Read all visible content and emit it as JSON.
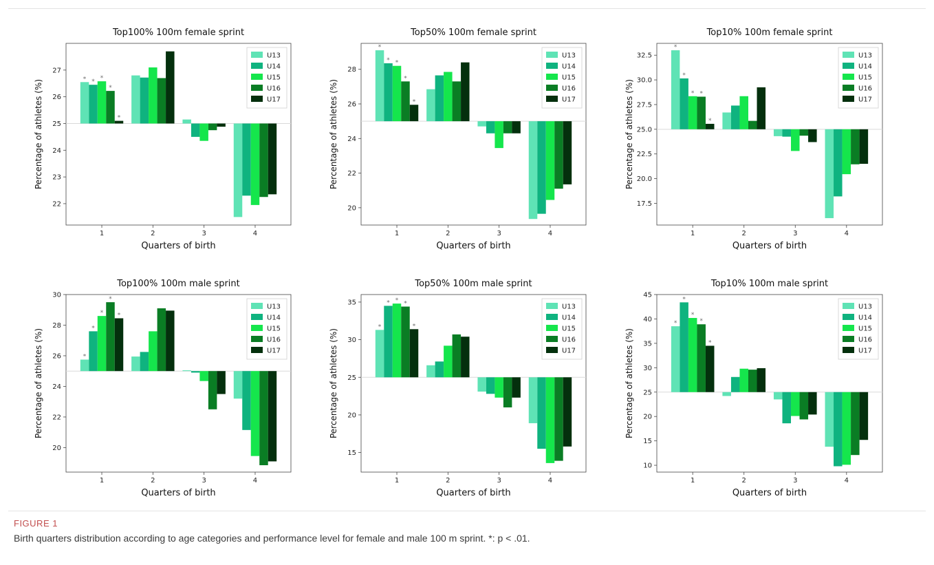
{
  "figure": {
    "label": "FIGURE 1",
    "caption": "Birth quarters distribution according to age categories and performance level for female and male 100 m sprint. *: p < .01."
  },
  "colors": {
    "U13": "#5fe3b5",
    "U14": "#0fb37f",
    "U15": "#15e64c",
    "U16": "#0a7d24",
    "U17": "#04300d",
    "baseline": "#d9d9d9",
    "star": "#6e6e6e"
  },
  "chart_data": [
    {
      "type": "bar",
      "title": "Top100% 100m female sprint",
      "xlabel": "Quarters of birth",
      "ylabel": "Percentage of athletes (%)",
      "baseline": 25,
      "ylim": [
        21.2,
        28.0
      ],
      "yticks": [
        22,
        23,
        24,
        25,
        26,
        27
      ],
      "ytick_labels": [
        "22",
        "23",
        "24",
        "25",
        "26",
        "27"
      ],
      "categories": [
        "1",
        "2",
        "3",
        "4"
      ],
      "legend": "top-right",
      "series": [
        {
          "name": "U13",
          "values": [
            26.55,
            26.8,
            25.15,
            21.5
          ],
          "significant": [
            true,
            false,
            false,
            false
          ]
        },
        {
          "name": "U14",
          "values": [
            26.45,
            26.72,
            24.5,
            22.3
          ],
          "significant": [
            true,
            false,
            false,
            false
          ]
        },
        {
          "name": "U15",
          "values": [
            26.58,
            27.1,
            24.35,
            21.95
          ],
          "significant": [
            true,
            false,
            false,
            false
          ]
        },
        {
          "name": "U16",
          "values": [
            26.22,
            26.7,
            24.75,
            22.25
          ],
          "significant": [
            true,
            false,
            false,
            false
          ]
        },
        {
          "name": "U17",
          "values": [
            25.1,
            27.7,
            24.88,
            22.35
          ],
          "significant": [
            true,
            false,
            false,
            false
          ]
        }
      ]
    },
    {
      "type": "bar",
      "title": "Top50% 100m female sprint",
      "xlabel": "Quarters of birth",
      "ylabel": "Percentage of athletes (%)",
      "baseline": 25,
      "ylim": [
        19.0,
        29.5
      ],
      "yticks": [
        20,
        22,
        24,
        26,
        28
      ],
      "ytick_labels": [
        "20",
        "22",
        "24",
        "26",
        "28"
      ],
      "categories": [
        "1",
        "2",
        "3",
        "4"
      ],
      "legend": "top-right",
      "series": [
        {
          "name": "U13",
          "values": [
            29.1,
            26.85,
            24.7,
            19.35
          ],
          "significant": [
            true,
            false,
            false,
            false
          ]
        },
        {
          "name": "U14",
          "values": [
            28.35,
            27.65,
            24.3,
            19.65
          ],
          "significant": [
            true,
            false,
            false,
            false
          ]
        },
        {
          "name": "U15",
          "values": [
            28.2,
            27.85,
            23.45,
            20.45
          ],
          "significant": [
            true,
            false,
            false,
            false
          ]
        },
        {
          "name": "U16",
          "values": [
            27.3,
            27.3,
            24.3,
            21.1
          ],
          "significant": [
            true,
            false,
            false,
            false
          ]
        },
        {
          "name": "U17",
          "values": [
            25.95,
            28.4,
            24.3,
            21.35
          ],
          "significant": [
            true,
            false,
            false,
            false
          ]
        }
      ]
    },
    {
      "type": "bar",
      "title": "Top10% 100m female sprint",
      "xlabel": "Quarters of birth",
      "ylabel": "Percentage of athletes (%)",
      "baseline": 25,
      "ylim": [
        15.3,
        33.7
      ],
      "yticks": [
        17.5,
        20.0,
        22.5,
        25.0,
        27.5,
        30.0,
        32.5
      ],
      "ytick_labels": [
        "17.5",
        "20.0",
        "22.5",
        "25.0",
        "27.5",
        "30.0",
        "32.5"
      ],
      "categories": [
        "1",
        "2",
        "3",
        "4"
      ],
      "legend": "top-right",
      "series": [
        {
          "name": "U13",
          "values": [
            33.0,
            26.7,
            24.3,
            16.0
          ],
          "significant": [
            true,
            false,
            false,
            false
          ]
        },
        {
          "name": "U14",
          "values": [
            30.15,
            27.4,
            24.25,
            18.2
          ],
          "significant": [
            true,
            false,
            false,
            false
          ]
        },
        {
          "name": "U15",
          "values": [
            28.35,
            28.35,
            22.8,
            20.45
          ],
          "significant": [
            true,
            false,
            false,
            false
          ]
        },
        {
          "name": "U16",
          "values": [
            28.3,
            25.85,
            24.35,
            21.45
          ],
          "significant": [
            true,
            false,
            false,
            false
          ]
        },
        {
          "name": "U17",
          "values": [
            25.55,
            29.25,
            23.7,
            21.5
          ],
          "significant": [
            true,
            false,
            false,
            false
          ]
        }
      ]
    },
    {
      "type": "bar",
      "title": "Top100% 100m male sprint",
      "xlabel": "Quarters of birth",
      "ylabel": "Percentage of athletes (%)",
      "baseline": 25,
      "ylim": [
        18.4,
        30.0
      ],
      "yticks": [
        20,
        22,
        24,
        26,
        28,
        30
      ],
      "ytick_labels": [
        "20",
        "22",
        "24",
        "26",
        "28",
        "30"
      ],
      "categories": [
        "1",
        "2",
        "3",
        "4"
      ],
      "legend": "top-right",
      "series": [
        {
          "name": "U13",
          "values": [
            25.75,
            25.95,
            25.05,
            23.2
          ],
          "significant": [
            true,
            false,
            false,
            false
          ]
        },
        {
          "name": "U14",
          "values": [
            27.6,
            26.25,
            24.9,
            21.15
          ],
          "significant": [
            true,
            false,
            false,
            false
          ]
        },
        {
          "name": "U15",
          "values": [
            28.6,
            27.6,
            24.35,
            19.45
          ],
          "significant": [
            true,
            false,
            false,
            false
          ]
        },
        {
          "name": "U16",
          "values": [
            29.5,
            29.1,
            22.5,
            18.85
          ],
          "significant": [
            true,
            false,
            false,
            false
          ]
        },
        {
          "name": "U17",
          "values": [
            28.45,
            28.95,
            23.5,
            19.1
          ],
          "significant": [
            true,
            false,
            false,
            false
          ]
        }
      ]
    },
    {
      "type": "bar",
      "title": "Top50% 100m male sprint",
      "xlabel": "Quarters of birth",
      "ylabel": "Percentage of athletes (%)",
      "baseline": 25,
      "ylim": [
        12.4,
        36.0
      ],
      "yticks": [
        15,
        20,
        25,
        30,
        35
      ],
      "ytick_labels": [
        "15",
        "20",
        "25",
        "30",
        "35"
      ],
      "categories": [
        "1",
        "2",
        "3",
        "4"
      ],
      "legend": "top-right",
      "series": [
        {
          "name": "U13",
          "values": [
            31.3,
            26.6,
            23.1,
            18.9
          ],
          "significant": [
            true,
            false,
            false,
            false
          ]
        },
        {
          "name": "U14",
          "values": [
            34.5,
            27.1,
            22.8,
            15.5
          ],
          "significant": [
            true,
            false,
            false,
            false
          ]
        },
        {
          "name": "U15",
          "values": [
            34.8,
            29.2,
            22.3,
            13.6
          ],
          "significant": [
            true,
            false,
            false,
            false
          ]
        },
        {
          "name": "U16",
          "values": [
            34.4,
            30.7,
            21.0,
            13.9
          ],
          "significant": [
            true,
            false,
            false,
            false
          ]
        },
        {
          "name": "U17",
          "values": [
            31.4,
            30.4,
            22.3,
            15.8
          ],
          "significant": [
            true,
            false,
            false,
            false
          ]
        }
      ]
    },
    {
      "type": "bar",
      "title": "Top10% 100m male sprint",
      "xlabel": "Quarters of birth",
      "ylabel": "Percentage of athletes (%)",
      "baseline": 25,
      "ylim": [
        8.6,
        45.0
      ],
      "yticks": [
        10,
        15,
        20,
        25,
        30,
        35,
        40,
        45
      ],
      "ytick_labels": [
        "10",
        "15",
        "20",
        "25",
        "30",
        "35",
        "40",
        "45"
      ],
      "categories": [
        "1",
        "2",
        "3",
        "4"
      ],
      "legend": "top-right",
      "series": [
        {
          "name": "U13",
          "values": [
            38.5,
            24.2,
            23.5,
            13.8
          ],
          "significant": [
            true,
            false,
            false,
            false
          ]
        },
        {
          "name": "U14",
          "values": [
            43.4,
            28.1,
            18.6,
            9.8
          ],
          "significant": [
            true,
            false,
            false,
            false
          ]
        },
        {
          "name": "U15",
          "values": [
            40.2,
            29.8,
            20.1,
            10.1
          ],
          "significant": [
            true,
            false,
            false,
            false
          ]
        },
        {
          "name": "U16",
          "values": [
            38.9,
            29.6,
            19.4,
            12.1
          ],
          "significant": [
            true,
            false,
            false,
            false
          ]
        },
        {
          "name": "U17",
          "values": [
            34.5,
            29.9,
            20.4,
            15.2
          ],
          "significant": [
            true,
            false,
            false,
            false
          ]
        }
      ]
    }
  ]
}
